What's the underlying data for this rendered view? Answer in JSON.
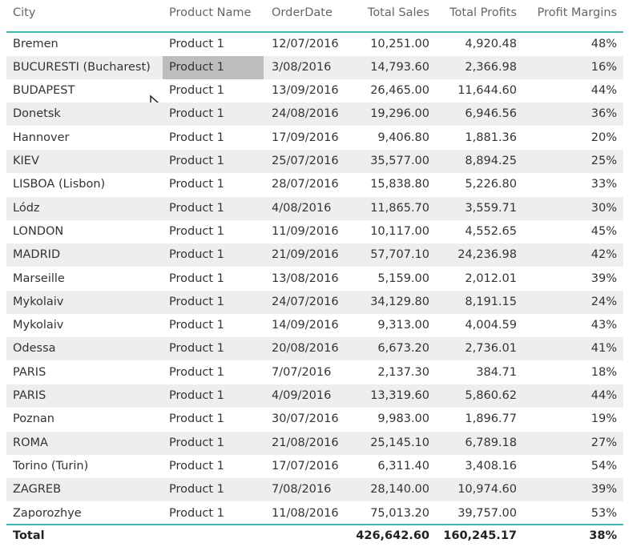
{
  "table": {
    "columns": [
      "City",
      "Product Name",
      "OrderDate",
      "Total Sales",
      "Total Profits",
      "Profit Margins"
    ],
    "rows": [
      [
        "Bremen",
        "Product 1",
        "12/07/2016",
        "10,251.00",
        "4,920.48",
        "48%"
      ],
      [
        "BUCURESTI (Bucharest)",
        "Product 1",
        "3/08/2016",
        "14,793.60",
        "2,366.98",
        "16%"
      ],
      [
        "BUDAPEST",
        "Product 1",
        "13/09/2016",
        "26,465.00",
        "11,644.60",
        "44%"
      ],
      [
        "Donetsk",
        "Product 1",
        "24/08/2016",
        "19,296.00",
        "6,946.56",
        "36%"
      ],
      [
        "Hannover",
        "Product 1",
        "17/09/2016",
        "9,406.80",
        "1,881.36",
        "20%"
      ],
      [
        "KIEV",
        "Product 1",
        "25/07/2016",
        "35,577.00",
        "8,894.25",
        "25%"
      ],
      [
        "LISBOA (Lisbon)",
        "Product 1",
        "28/07/2016",
        "15,838.80",
        "5,226.80",
        "33%"
      ],
      [
        "Lódz",
        "Product 1",
        "4/08/2016",
        "11,865.70",
        "3,559.71",
        "30%"
      ],
      [
        "LONDON",
        "Product 1",
        "11/09/2016",
        "10,117.00",
        "4,552.65",
        "45%"
      ],
      [
        "MADRID",
        "Product 1",
        "21/09/2016",
        "57,707.10",
        "24,236.98",
        "42%"
      ],
      [
        "Marseille",
        "Product 1",
        "13/08/2016",
        "5,159.00",
        "2,012.01",
        "39%"
      ],
      [
        "Mykolaiv",
        "Product 1",
        "24/07/2016",
        "34,129.80",
        "8,191.15",
        "24%"
      ],
      [
        "Mykolaiv",
        "Product 1",
        "14/09/2016",
        "9,313.00",
        "4,004.59",
        "43%"
      ],
      [
        "Odessa",
        "Product 1",
        "20/08/2016",
        "6,673.20",
        "2,736.01",
        "41%"
      ],
      [
        "PARIS",
        "Product 1",
        "7/07/2016",
        "2,137.30",
        "384.71",
        "18%"
      ],
      [
        "PARIS",
        "Product 1",
        "4/09/2016",
        "13,319.60",
        "5,860.62",
        "44%"
      ],
      [
        "Poznan",
        "Product 1",
        "30/07/2016",
        "9,983.00",
        "1,896.77",
        "19%"
      ],
      [
        "ROMA",
        "Product 1",
        "21/08/2016",
        "25,145.10",
        "6,789.18",
        "27%"
      ],
      [
        "Torino (Turin)",
        "Product 1",
        "17/07/2016",
        "6,311.40",
        "3,408.16",
        "54%"
      ],
      [
        "ZAGREB",
        "Product 1",
        "7/08/2016",
        "28,140.00",
        "10,974.60",
        "39%"
      ],
      [
        "Zaporozhye",
        "Product 1",
        "11/08/2016",
        "75,013.20",
        "39,757.00",
        "53%"
      ]
    ],
    "total": {
      "label": "Total",
      "values": [
        "426,642.60",
        "160,245.17",
        "38%"
      ]
    }
  }
}
